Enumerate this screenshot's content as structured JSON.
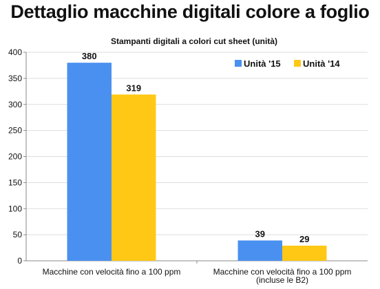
{
  "header": {
    "title": "Dettaglio macchine digitali colore a foglio"
  },
  "chart_data": {
    "type": "bar",
    "title": "Stampanti digitali a colori cut sheet (unità)",
    "categories": [
      [
        "Macchine con velocità fino a 100 ppm"
      ],
      [
        "Macchine con velocità fino a 100 ppm",
        "(incluse le B2)"
      ]
    ],
    "series": [
      {
        "name": "Unità '15",
        "values": [
          380,
          39
        ],
        "color": "#4a90f0"
      },
      {
        "name": "Unità '14",
        "values": [
          319,
          29
        ],
        "color": "#ffc815"
      }
    ],
    "yticks": [
      0,
      50,
      100,
      150,
      200,
      250,
      300,
      350,
      400
    ],
    "ylim": [
      0,
      400
    ],
    "xlabel": "",
    "ylabel": "",
    "grid": true,
    "legend_position": "top-right",
    "colors": {
      "grid": "#dddddd",
      "axis": "#888888"
    }
  }
}
